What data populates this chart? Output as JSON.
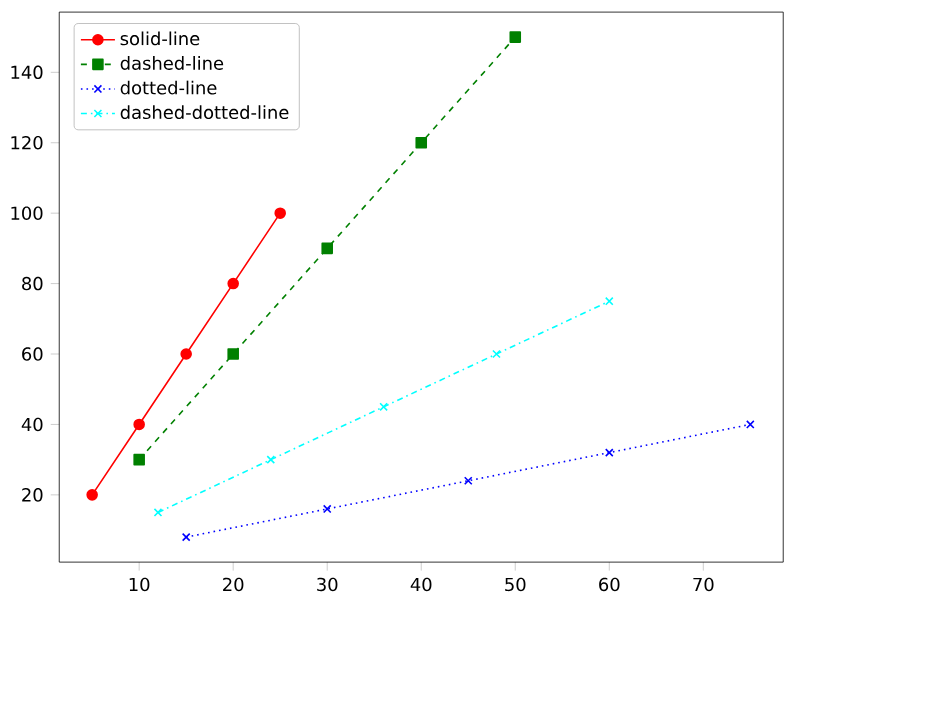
{
  "chart_data": {
    "type": "line",
    "xlim": [
      1.5,
      78.5
    ],
    "ylim": [
      0.9,
      157.1
    ],
    "xticks": [
      10,
      20,
      30,
      40,
      50,
      60,
      70
    ],
    "yticks": [
      20,
      40,
      60,
      80,
      100,
      120,
      140
    ],
    "grid": false,
    "legend": "top left",
    "series": [
      {
        "name": "solid-line",
        "color": "#ff0000",
        "marker": "circle",
        "line_style": "solid",
        "x": [
          5,
          10,
          15,
          20,
          25
        ],
        "values": [
          20,
          40,
          60,
          80,
          100
        ]
      },
      {
        "name": "dashed-line",
        "color": "#008000",
        "marker": "square",
        "line_style": "dashed",
        "x": [
          10,
          20,
          30,
          40,
          50
        ],
        "values": [
          30,
          60,
          90,
          120,
          150
        ]
      },
      {
        "name": "dotted-line",
        "color": "#0000ff",
        "marker": "cross",
        "line_style": "dotted",
        "x": [
          15,
          30,
          45,
          60,
          75
        ],
        "values": [
          8,
          16,
          24,
          32,
          40
        ]
      },
      {
        "name": "dashed-dotted-line",
        "color": "#00ffff",
        "marker": "cross",
        "line_style": "dashdot",
        "x": [
          12,
          24,
          36,
          48,
          60
        ],
        "values": [
          15,
          30,
          45,
          60,
          75
        ]
      }
    ]
  }
}
